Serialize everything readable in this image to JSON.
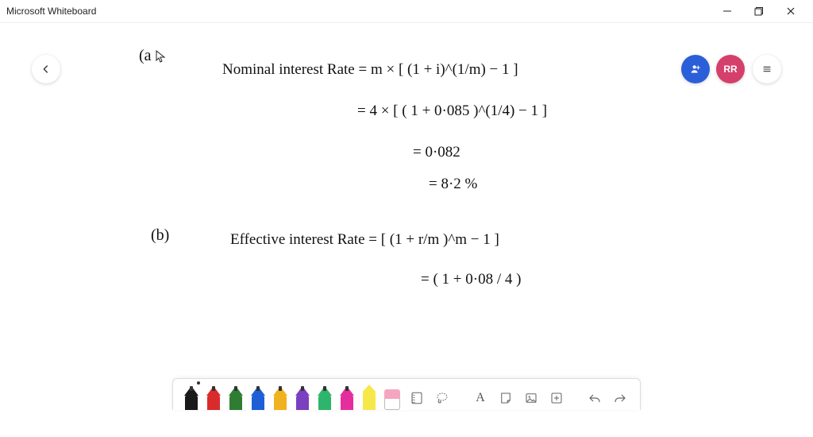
{
  "window": {
    "title": "Microsoft Whiteboard"
  },
  "header": {
    "avatar_initials": "RR"
  },
  "handwriting": {
    "part_a_label": "(a",
    "line1": "Nominal  interest  Rate   =    m ×   [ (1 + i)^(1/m)  − 1 ]",
    "line2": "=   4 ×  [ ( 1 +  0·085 )^(1/4) − 1 ]",
    "line3": "=   0·082",
    "line4": "=  8·2 %",
    "part_b_label": "(b)",
    "line5": "Effective  interest  Rate    =    [ (1 +  r/m )^m  − 1 ]",
    "line6": "=   ( 1 +  0·08 / 4 )"
  },
  "toolbar": {
    "pens": [
      {
        "color": "#1a1a1a",
        "active": true
      },
      {
        "color": "#d92b2b",
        "active": false
      },
      {
        "color": "#2f7d32",
        "active": false
      },
      {
        "color": "#1e5fd6",
        "active": false
      },
      {
        "color": "#f0b21e",
        "active": false
      },
      {
        "color": "#7b3fbf",
        "active": false
      },
      {
        "color": "#2fb56b",
        "active": false
      },
      {
        "color": "#e52e9d",
        "active": false
      }
    ],
    "highlighter_color": "#f7e84a",
    "text_label": "A"
  },
  "style": {
    "hand_color": "#111111",
    "hand_fontsize_main": 19,
    "hand_fontsize_label": 20,
    "share_bg": "#2b5fd9",
    "avatar_bg": "#d53f6b"
  }
}
